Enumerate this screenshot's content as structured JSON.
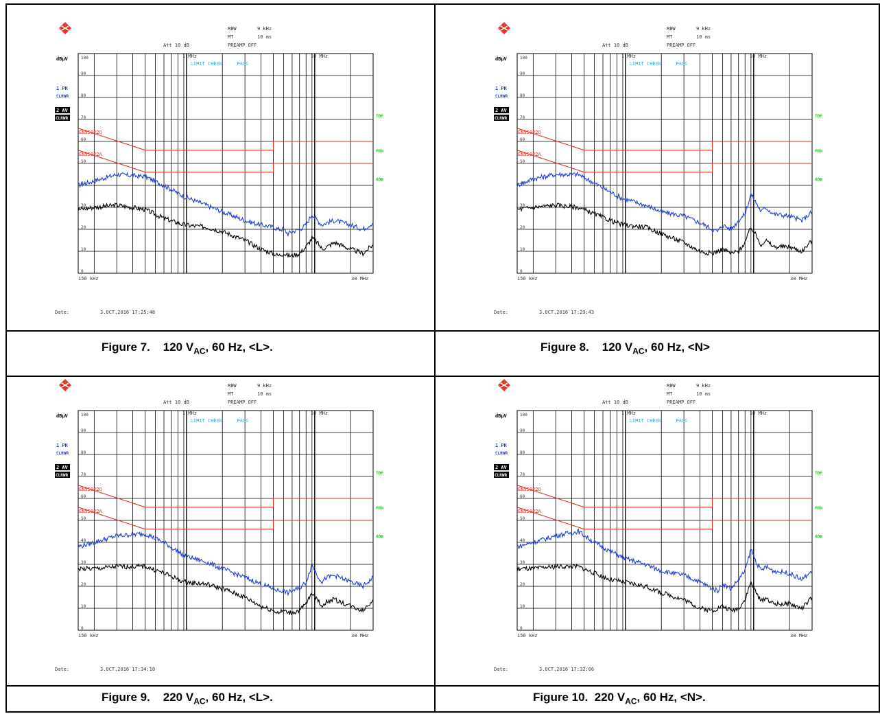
{
  "figures": [
    {
      "caption": {
        "label": "Figure 7.",
        "v": "120 V",
        "sub": "AC",
        "rest": ", 60 Hz, <L>."
      },
      "header": {
        "rbw_label": "RBW",
        "rbw": "9 kHz",
        "mt_label": "MT",
        "mt": "10 ms",
        "att": "Att 10 dB",
        "preamp": "PREAMP OFF"
      },
      "unit": "dBµV",
      "trace1_label": [
        "1 PK",
        "CLRWR"
      ],
      "trace2_label": [
        "2 AV",
        "CLRWR"
      ],
      "limit_check": "LIMIT CHECK",
      "pass": "PASS",
      "right_labels": [
        "TDF",
        "PRN",
        "6DB"
      ],
      "limit_labels": [
        "EN55022Q",
        "EN55022A"
      ],
      "marker_labels": [
        "1 MHz",
        "10 MHz"
      ],
      "xstart": "150 kHz",
      "xstop": "30 MHz",
      "date_label": "Date:",
      "date": "3.OCT.2016  17:25:48"
    },
    {
      "caption": {
        "label": "Figure 8.",
        "v": "120 V",
        "sub": "AC",
        "rest": ", 60 Hz, <N>"
      },
      "header": {
        "rbw_label": "RBW",
        "rbw": "9 kHz",
        "mt_label": "MT",
        "mt": "10 ms",
        "att": "Att 10 dB",
        "preamp": "PREAMP OFF"
      },
      "unit": "dBµV",
      "trace1_label": [
        "1 PK",
        "CLRWR"
      ],
      "trace2_label": [
        "2 AV",
        "CLRWR"
      ],
      "limit_check": "LIMIT CHECK",
      "pass": "PASS",
      "right_labels": [
        "TDF",
        "PRN",
        "6DB"
      ],
      "limit_labels": [
        "EN55022Q",
        "EN55022A"
      ],
      "marker_labels": [
        "1 MHz",
        "10 MHz"
      ],
      "xstart": "150 kHz",
      "xstop": "30 MHz",
      "date_label": "Date:",
      "date": "3.OCT.2016  17:29:43"
    },
    {
      "caption": {
        "label": "Figure 9.",
        "v": "220 V",
        "sub": "AC",
        "rest": ", 60 Hz, <L>."
      },
      "header": {
        "rbw_label": "RBW",
        "rbw": "9 kHz",
        "mt_label": "MT",
        "mt": "10 ms",
        "att": "Att 10 dB",
        "preamp": "PREAMP OFF"
      },
      "unit": "dBµV",
      "trace1_label": [
        "1 PK",
        "CLRWR"
      ],
      "trace2_label": [
        "2 AV",
        "CLRWR"
      ],
      "limit_check": "LIMIT CHECK",
      "pass": "PASS",
      "right_labels": [
        "TDF",
        "PRN",
        "6DB"
      ],
      "limit_labels": [
        "EN55022Q",
        "EN55022A"
      ],
      "marker_labels": [
        "1 MHz",
        "10 MHz"
      ],
      "xstart": "150 kHz",
      "xstop": "30 MHz",
      "date_label": "Date:",
      "date": "3.OCT.2016  17:34:10"
    },
    {
      "caption": {
        "label": "Figure 10.",
        "v": "220 V",
        "sub": "AC",
        "rest": ", 60 Hz, <N>."
      },
      "header": {
        "rbw_label": "RBW",
        "rbw": "9 kHz",
        "mt_label": "MT",
        "mt": "10 ms",
        "att": "Att 10 dB",
        "preamp": "PREAMP OFF"
      },
      "unit": "dBµV",
      "trace1_label": [
        "1 PK",
        "CLRWR"
      ],
      "trace2_label": [
        "2 AV",
        "CLRWR"
      ],
      "limit_check": "LIMIT CHECK",
      "pass": "PASS",
      "right_labels": [
        "TDF",
        "PRN",
        "6DB"
      ],
      "limit_labels": [
        "EN55022Q",
        "EN55022A"
      ],
      "marker_labels": [
        "1 MHz",
        "10 MHz"
      ],
      "xstart": "150 kHz",
      "xstop": "30 MHz",
      "date_label": "Date:",
      "date": "3.OCT.2016  17:32:06"
    }
  ],
  "chart_data": [
    {
      "type": "line",
      "xscale": "log",
      "xlim_mhz": [
        0.15,
        30
      ],
      "ylim": [
        0,
        100
      ],
      "ylabel": "dBµV",
      "yticks": [
        0,
        10,
        20,
        30,
        40,
        50,
        60,
        70,
        80,
        90,
        100
      ],
      "grid": true,
      "series": [
        {
          "name": "1 PK",
          "color": "#1f3fd6",
          "x": [
            0.15,
            0.2,
            0.3,
            0.5,
            0.7,
            1,
            1.5,
            2,
            3,
            4,
            5,
            5.5,
            6,
            6.5,
            7,
            8,
            9,
            10,
            11,
            12,
            13,
            15,
            20,
            25,
            30
          ],
          "y": [
            40,
            42,
            45,
            44,
            40,
            35,
            31,
            28,
            24,
            22,
            21,
            20,
            20,
            18,
            19,
            20,
            22,
            27,
            24,
            22,
            23,
            24,
            22,
            20,
            23
          ]
        },
        {
          "name": "2 AV",
          "color": "#000000",
          "x": [
            0.15,
            0.2,
            0.3,
            0.5,
            0.7,
            1,
            1.5,
            2,
            3,
            4,
            5,
            5.5,
            6,
            6.5,
            7,
            8,
            9,
            10,
            11,
            12,
            13,
            15,
            20,
            25,
            30
          ],
          "y": [
            29,
            30,
            31,
            29,
            25,
            22,
            21,
            19,
            15,
            11,
            9,
            8,
            9,
            8,
            8,
            9,
            12,
            16,
            14,
            11,
            12,
            14,
            11,
            9,
            13
          ]
        },
        {
          "name": "EN55022Q",
          "color": "#e03020",
          "x": [
            0.15,
            0.5,
            5,
            5,
            30
          ],
          "y": [
            66,
            56,
            56,
            60,
            60
          ]
        },
        {
          "name": "EN55022A",
          "color": "#e03020",
          "x": [
            0.15,
            0.5,
            5,
            5,
            30
          ],
          "y": [
            56,
            46,
            46,
            50,
            50
          ]
        }
      ]
    },
    {
      "type": "line",
      "xscale": "log",
      "xlim_mhz": [
        0.15,
        30
      ],
      "ylim": [
        0,
        100
      ],
      "ylabel": "dBµV",
      "yticks": [
        0,
        10,
        20,
        30,
        40,
        50,
        60,
        70,
        80,
        90,
        100
      ],
      "grid": true,
      "series": [
        {
          "name": "1 PK",
          "color": "#1f3fd6",
          "x": [
            0.15,
            0.2,
            0.3,
            0.45,
            0.6,
            0.8,
            1,
            1.5,
            2,
            3,
            4,
            5,
            5.5,
            6,
            7,
            8,
            9,
            10,
            11,
            12,
            13,
            15,
            20,
            25,
            30
          ],
          "y": [
            40,
            43,
            45,
            45,
            41,
            37,
            34,
            31,
            28,
            26,
            23,
            20,
            19,
            22,
            20,
            24,
            27,
            36,
            32,
            28,
            30,
            27,
            26,
            24,
            28
          ]
        },
        {
          "name": "2 AV",
          "color": "#000000",
          "x": [
            0.15,
            0.2,
            0.3,
            0.45,
            0.6,
            0.8,
            1,
            1.5,
            2,
            3,
            4,
            5,
            5.5,
            6,
            7,
            8,
            9,
            10,
            11,
            12,
            13,
            15,
            20,
            25,
            30
          ],
          "y": [
            29,
            30,
            31,
            30,
            27,
            24,
            22,
            21,
            18,
            14,
            10,
            9,
            10,
            11,
            9,
            10,
            14,
            21,
            17,
            13,
            15,
            12,
            12,
            10,
            15
          ]
        },
        {
          "name": "EN55022Q",
          "color": "#e03020",
          "x": [
            0.15,
            0.5,
            5,
            5,
            30
          ],
          "y": [
            66,
            56,
            56,
            60,
            60
          ]
        },
        {
          "name": "EN55022A",
          "color": "#e03020",
          "x": [
            0.15,
            0.5,
            5,
            5,
            30
          ],
          "y": [
            56,
            46,
            46,
            50,
            50
          ]
        }
      ]
    },
    {
      "type": "line",
      "xscale": "log",
      "xlim_mhz": [
        0.15,
        30
      ],
      "ylim": [
        0,
        100
      ],
      "ylabel": "dBµV",
      "yticks": [
        0,
        10,
        20,
        30,
        40,
        50,
        60,
        70,
        80,
        90,
        100
      ],
      "grid": true,
      "series": [
        {
          "name": "1 PK",
          "color": "#1f3fd6",
          "x": [
            0.15,
            0.2,
            0.3,
            0.5,
            0.7,
            1,
            1.5,
            2,
            3,
            4,
            5,
            5.5,
            6,
            6.5,
            7,
            8,
            9,
            10,
            11,
            12,
            13,
            15,
            20,
            25,
            30
          ],
          "y": [
            38,
            40,
            43,
            44,
            40,
            34,
            31,
            28,
            24,
            21,
            19,
            18,
            18,
            17,
            18,
            19,
            22,
            30,
            25,
            22,
            24,
            25,
            22,
            20,
            24
          ]
        },
        {
          "name": "2 AV",
          "color": "#000000",
          "x": [
            0.15,
            0.2,
            0.3,
            0.5,
            0.7,
            1,
            1.5,
            2,
            3,
            4,
            5,
            5.5,
            6,
            6.5,
            7,
            8,
            9,
            10,
            11,
            12,
            13,
            15,
            20,
            25,
            30
          ],
          "y": [
            28,
            28,
            29,
            29,
            26,
            22,
            21,
            19,
            15,
            11,
            9,
            8,
            9,
            8,
            8,
            9,
            12,
            17,
            14,
            11,
            13,
            14,
            11,
            9,
            14
          ]
        },
        {
          "name": "EN55022Q",
          "color": "#e03020",
          "x": [
            0.15,
            0.5,
            5,
            5,
            30
          ],
          "y": [
            66,
            56,
            56,
            60,
            60
          ]
        },
        {
          "name": "EN55022A",
          "color": "#e03020",
          "x": [
            0.15,
            0.5,
            5,
            5,
            30
          ],
          "y": [
            56,
            46,
            46,
            50,
            50
          ]
        }
      ]
    },
    {
      "type": "line",
      "xscale": "log",
      "xlim_mhz": [
        0.15,
        30
      ],
      "ylim": [
        0,
        100
      ],
      "ylabel": "dBµV",
      "yticks": [
        0,
        10,
        20,
        30,
        40,
        50,
        60,
        70,
        80,
        90,
        100
      ],
      "grid": true,
      "series": [
        {
          "name": "1 PK",
          "color": "#1f3fd6",
          "x": [
            0.15,
            0.2,
            0.3,
            0.45,
            0.6,
            0.8,
            1,
            1.5,
            2,
            3,
            4,
            5,
            5.5,
            6,
            7,
            8,
            9,
            10,
            11,
            12,
            13,
            15,
            20,
            25,
            30
          ],
          "y": [
            38,
            40,
            43,
            45,
            40,
            36,
            33,
            30,
            27,
            25,
            22,
            19,
            18,
            21,
            19,
            23,
            27,
            37,
            31,
            27,
            29,
            27,
            26,
            23,
            27
          ]
        },
        {
          "name": "2 AV",
          "color": "#000000",
          "x": [
            0.15,
            0.2,
            0.3,
            0.45,
            0.6,
            0.8,
            1,
            1.5,
            2,
            3,
            4,
            5,
            5.5,
            6,
            7,
            8,
            9,
            10,
            11,
            12,
            13,
            15,
            20,
            25,
            30
          ],
          "y": [
            28,
            28,
            29,
            29,
            26,
            23,
            22,
            20,
            17,
            14,
            10,
            9,
            10,
            11,
            9,
            10,
            14,
            22,
            17,
            13,
            15,
            12,
            12,
            10,
            15
          ]
        },
        {
          "name": "EN55022Q",
          "color": "#e03020",
          "x": [
            0.15,
            0.5,
            5,
            5,
            30
          ],
          "y": [
            66,
            56,
            56,
            60,
            60
          ]
        },
        {
          "name": "EN55022A",
          "color": "#e03020",
          "x": [
            0.15,
            0.5,
            5,
            5,
            30
          ],
          "y": [
            56,
            46,
            46,
            50,
            50
          ]
        }
      ]
    }
  ]
}
